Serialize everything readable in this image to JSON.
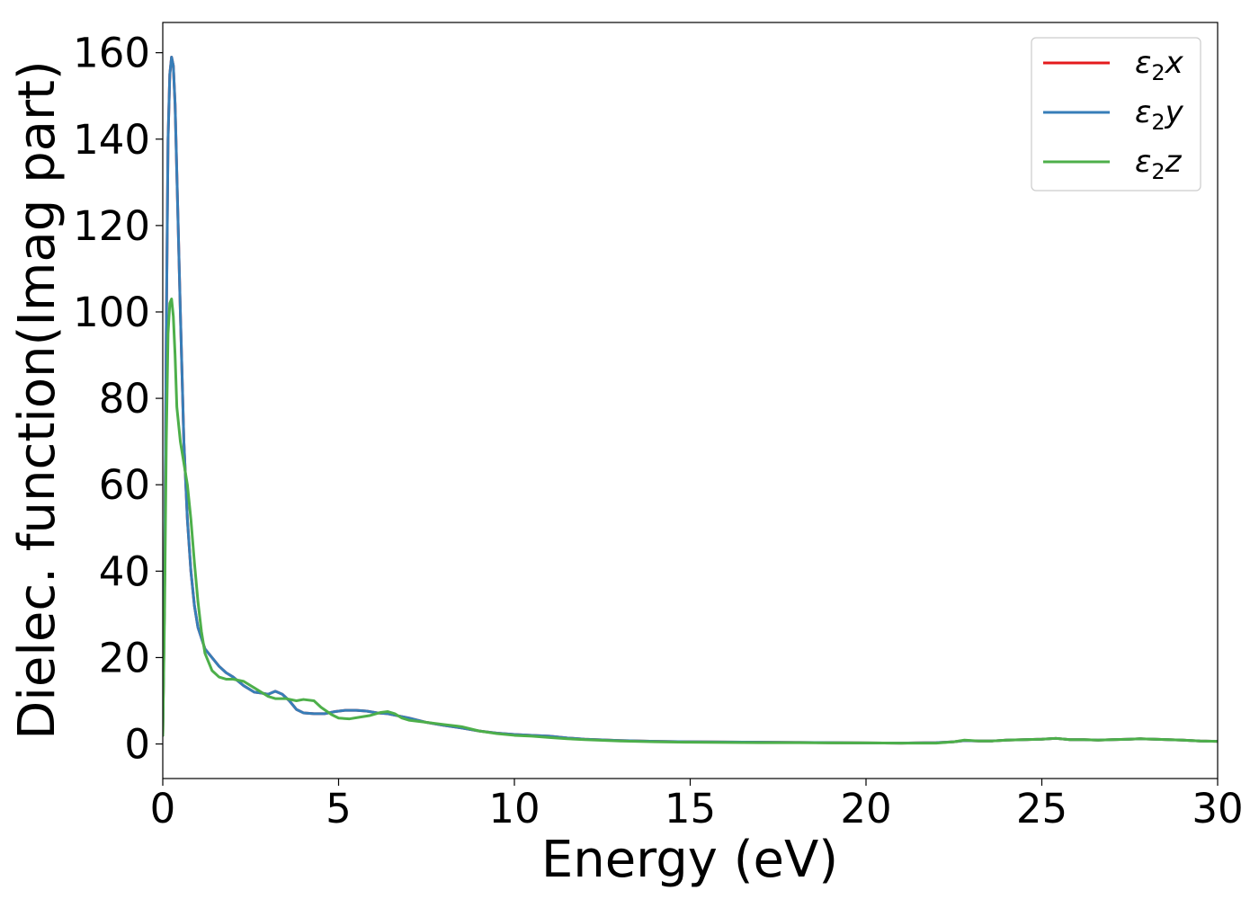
{
  "chart_data": {
    "type": "line",
    "title": "",
    "xlabel": "Energy (eV)",
    "ylabel": "Dielec. function(Imag part)",
    "xlim": [
      0,
      30
    ],
    "ylim": [
      -8,
      167
    ],
    "xticks": [
      0,
      5,
      10,
      15,
      20,
      25,
      30
    ],
    "yticks": [
      0,
      20,
      40,
      60,
      80,
      100,
      120,
      140,
      160
    ],
    "grid": false,
    "legend_position": "top-right",
    "series": [
      {
        "name": "ε₂x",
        "legend_base": "ε",
        "legend_sub": "2",
        "legend_var": "x",
        "color": "#e41a1c",
        "x": [
          0,
          0.05,
          0.1,
          0.15,
          0.2,
          0.25,
          0.3,
          0.35,
          0.4,
          0.5,
          0.6,
          0.7,
          0.8,
          0.9,
          1.0,
          1.2,
          1.4,
          1.6,
          1.8,
          2.0,
          2.3,
          2.6,
          2.8,
          3.0,
          3.2,
          3.4,
          3.6,
          3.8,
          4.0,
          4.3,
          4.6,
          4.9,
          5.2,
          5.5,
          5.8,
          6.1,
          6.4,
          6.7,
          7.0,
          7.5,
          8.0,
          8.5,
          9.0,
          9.5,
          10.0,
          10.5,
          11.0,
          11.5,
          12.0,
          13.0,
          14.0,
          15.0,
          16.0,
          17.0,
          18.0,
          19.0,
          20.0,
          21.0,
          22.0,
          22.5,
          22.8,
          23.2,
          23.6,
          24.0,
          24.5,
          25.0,
          25.4,
          25.8,
          26.2,
          26.6,
          27.0,
          27.5,
          27.8,
          28.2,
          28.6,
          29.0,
          29.5,
          30.0
        ],
        "y": [
          2,
          35,
          95,
          140,
          155,
          159,
          157,
          148,
          132,
          100,
          70,
          52,
          40,
          32,
          27,
          22,
          20,
          18,
          16.5,
          15.5,
          13.5,
          12,
          11.8,
          11.5,
          12.2,
          11.5,
          10,
          8,
          7.2,
          7,
          7,
          7.5,
          7.8,
          7.8,
          7.6,
          7.2,
          7,
          6.5,
          6,
          5,
          4.3,
          3.7,
          3,
          2.5,
          2.2,
          2,
          1.8,
          1.4,
          1.1,
          0.8,
          0.6,
          0.5,
          0.45,
          0.4,
          0.35,
          0.3,
          0.25,
          0.2,
          0.3,
          0.5,
          0.8,
          0.7,
          0.7,
          0.9,
          1.0,
          1.1,
          1.3,
          1.0,
          1.0,
          0.9,
          1.0,
          1.1,
          1.2,
          1.1,
          1.0,
          0.9,
          0.7,
          0.6
        ]
      },
      {
        "name": "ε₂y",
        "legend_base": "ε",
        "legend_sub": "2",
        "legend_var": "y",
        "color": "#377eb8",
        "x": [
          0,
          0.05,
          0.1,
          0.15,
          0.2,
          0.25,
          0.3,
          0.35,
          0.4,
          0.5,
          0.6,
          0.7,
          0.8,
          0.9,
          1.0,
          1.2,
          1.4,
          1.6,
          1.8,
          2.0,
          2.3,
          2.6,
          2.8,
          3.0,
          3.2,
          3.4,
          3.6,
          3.8,
          4.0,
          4.3,
          4.6,
          4.9,
          5.2,
          5.5,
          5.8,
          6.1,
          6.4,
          6.7,
          7.0,
          7.5,
          8.0,
          8.5,
          9.0,
          9.5,
          10.0,
          10.5,
          11.0,
          11.5,
          12.0,
          13.0,
          14.0,
          15.0,
          16.0,
          17.0,
          18.0,
          19.0,
          20.0,
          21.0,
          22.0,
          22.5,
          22.8,
          23.2,
          23.6,
          24.0,
          24.5,
          25.0,
          25.4,
          25.8,
          26.2,
          26.6,
          27.0,
          27.5,
          27.8,
          28.2,
          28.6,
          29.0,
          29.5,
          30.0
        ],
        "y": [
          2,
          35,
          95,
          140,
          155,
          159,
          157,
          148,
          132,
          100,
          70,
          52,
          40,
          32,
          27,
          22,
          20,
          18,
          16.5,
          15.5,
          13.5,
          12,
          11.8,
          11.5,
          12.2,
          11.5,
          10,
          8,
          7.2,
          7,
          7,
          7.5,
          7.8,
          7.8,
          7.6,
          7.2,
          7,
          6.5,
          6,
          5,
          4.3,
          3.7,
          3,
          2.5,
          2.2,
          2,
          1.8,
          1.4,
          1.1,
          0.8,
          0.6,
          0.5,
          0.45,
          0.4,
          0.35,
          0.3,
          0.25,
          0.2,
          0.3,
          0.5,
          0.8,
          0.7,
          0.7,
          0.9,
          1.0,
          1.1,
          1.3,
          1.0,
          1.0,
          0.9,
          1.0,
          1.1,
          1.2,
          1.1,
          1.0,
          0.9,
          0.7,
          0.6
        ]
      },
      {
        "name": "ε₂z",
        "legend_base": "ε",
        "legend_sub": "2",
        "legend_var": "z",
        "color": "#4daf4a",
        "x": [
          0,
          0.05,
          0.1,
          0.15,
          0.2,
          0.25,
          0.3,
          0.35,
          0.4,
          0.5,
          0.6,
          0.7,
          0.8,
          0.9,
          1.0,
          1.1,
          1.2,
          1.4,
          1.6,
          1.8,
          2.0,
          2.3,
          2.6,
          2.8,
          3.0,
          3.2,
          3.5,
          3.8,
          4.0,
          4.3,
          4.5,
          4.8,
          5.0,
          5.3,
          5.6,
          5.9,
          6.2,
          6.4,
          6.6,
          6.8,
          7.0,
          7.5,
          8.0,
          8.5,
          9.0,
          9.5,
          10.0,
          10.5,
          11.0,
          11.5,
          12.0,
          13.0,
          14.0,
          15.0,
          16.0,
          17.0,
          18.0,
          19.0,
          20.0,
          21.0,
          22.0,
          22.5,
          22.8,
          23.2,
          23.6,
          24.0,
          24.5,
          25.0,
          25.4,
          25.8,
          26.2,
          26.6,
          27.0,
          27.5,
          27.8,
          28.2,
          28.6,
          29.0,
          29.5,
          30.0
        ],
        "y": [
          2,
          30,
          70,
          95,
          102,
          103,
          99,
          90,
          78,
          70,
          65,
          60,
          52,
          42,
          33,
          26,
          21,
          17,
          15.5,
          15,
          15,
          14.5,
          13,
          12,
          11,
          10.5,
          10.5,
          10,
          10.3,
          10,
          8.5,
          6.8,
          6,
          5.8,
          6.2,
          6.6,
          7.3,
          7.5,
          7,
          6,
          5.5,
          5,
          4.5,
          4,
          3,
          2.4,
          2,
          1.8,
          1.5,
          1.2,
          1.0,
          0.7,
          0.5,
          0.4,
          0.35,
          0.3,
          0.3,
          0.25,
          0.25,
          0.2,
          0.2,
          0.5,
          0.9,
          0.7,
          0.7,
          0.9,
          1.0,
          1.1,
          1.3,
          1.0,
          1.0,
          0.9,
          1.0,
          1.1,
          1.2,
          1.1,
          1.0,
          0.9,
          0.7,
          0.6
        ]
      }
    ]
  }
}
